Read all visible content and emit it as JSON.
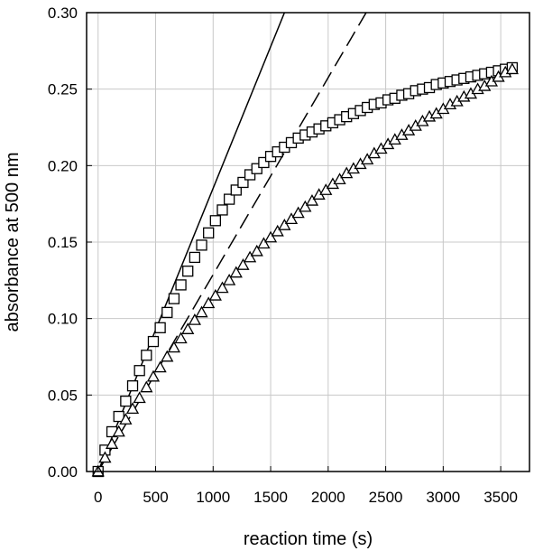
{
  "chart_data": {
    "type": "scatter",
    "xlabel": "reaction time (s)",
    "ylabel": "absorbance at 500 nm",
    "xlim": [
      -100,
      3750
    ],
    "ylim": [
      0,
      0.3
    ],
    "x_ticks": [
      "0",
      "500",
      "1000",
      "1500",
      "2000",
      "2500",
      "3000",
      "3500"
    ],
    "y_ticks": [
      "0.00",
      "0.05",
      "0.10",
      "0.15",
      "0.20",
      "0.25",
      "0.30"
    ],
    "grid": true,
    "series": [
      {
        "marker": "square",
        "x": [
          0,
          60,
          120,
          180,
          240,
          300,
          360,
          420,
          480,
          540,
          600,
          660,
          720,
          780,
          840,
          900,
          960,
          1020,
          1080,
          1140,
          1200,
          1260,
          1320,
          1380,
          1440,
          1500,
          1560,
          1620,
          1680,
          1740,
          1800,
          1860,
          1920,
          1980,
          2040,
          2100,
          2160,
          2220,
          2280,
          2340,
          2400,
          2460,
          2520,
          2580,
          2640,
          2700,
          2760,
          2820,
          2880,
          2940,
          3000,
          3060,
          3120,
          3180,
          3240,
          3300,
          3360,
          3420,
          3480,
          3540,
          3600
        ],
        "y": [
          0.0,
          0.014,
          0.026,
          0.036,
          0.046,
          0.056,
          0.066,
          0.076,
          0.085,
          0.094,
          0.104,
          0.113,
          0.122,
          0.131,
          0.14,
          0.148,
          0.156,
          0.164,
          0.171,
          0.178,
          0.184,
          0.189,
          0.194,
          0.198,
          0.202,
          0.206,
          0.209,
          0.212,
          0.215,
          0.218,
          0.22,
          0.222,
          0.224,
          0.226,
          0.228,
          0.23,
          0.232,
          0.234,
          0.236,
          0.238,
          0.24,
          0.241,
          0.243,
          0.244,
          0.246,
          0.247,
          0.249,
          0.25,
          0.251,
          0.253,
          0.254,
          0.255,
          0.256,
          0.257,
          0.258,
          0.259,
          0.26,
          0.261,
          0.262,
          0.263,
          0.264
        ]
      },
      {
        "marker": "triangle",
        "x": [
          0,
          60,
          120,
          180,
          240,
          300,
          360,
          420,
          480,
          540,
          600,
          660,
          720,
          780,
          840,
          900,
          960,
          1020,
          1080,
          1140,
          1200,
          1260,
          1320,
          1380,
          1440,
          1500,
          1560,
          1620,
          1680,
          1740,
          1800,
          1860,
          1920,
          1980,
          2040,
          2100,
          2160,
          2220,
          2280,
          2340,
          2400,
          2460,
          2520,
          2580,
          2640,
          2700,
          2760,
          2820,
          2880,
          2940,
          3000,
          3060,
          3120,
          3180,
          3240,
          3300,
          3360,
          3420,
          3480,
          3540,
          3600
        ],
        "y": [
          0.0,
          0.009,
          0.018,
          0.026,
          0.034,
          0.041,
          0.048,
          0.055,
          0.062,
          0.068,
          0.075,
          0.081,
          0.087,
          0.093,
          0.099,
          0.104,
          0.11,
          0.115,
          0.12,
          0.125,
          0.13,
          0.135,
          0.14,
          0.144,
          0.149,
          0.153,
          0.157,
          0.161,
          0.165,
          0.169,
          0.173,
          0.177,
          0.181,
          0.184,
          0.188,
          0.191,
          0.195,
          0.198,
          0.201,
          0.204,
          0.208,
          0.211,
          0.214,
          0.217,
          0.22,
          0.223,
          0.226,
          0.229,
          0.232,
          0.234,
          0.237,
          0.24,
          0.242,
          0.245,
          0.247,
          0.25,
          0.252,
          0.255,
          0.258,
          0.261,
          0.263
        ]
      },
      {
        "marker": "none",
        "line": "solid",
        "x": [
          0,
          1620
        ],
        "y": [
          0.0,
          0.3
        ]
      },
      {
        "marker": "none",
        "line": "dashed",
        "x": [
          0,
          2330
        ],
        "y": [
          0.0,
          0.3
        ]
      }
    ]
  }
}
